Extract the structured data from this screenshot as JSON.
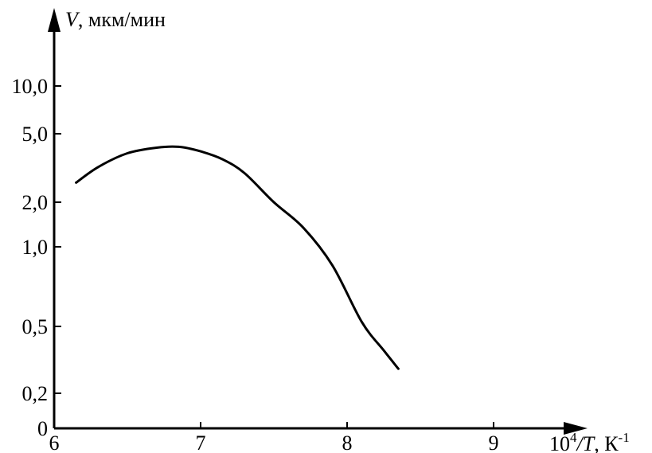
{
  "chart_data": {
    "type": "line",
    "title": "",
    "ylabel": {
      "symbol": "V",
      "unit": ", мкм/мин"
    },
    "xlabel": {
      "prefix": "10",
      "sup": "4",
      "symbol": "/T",
      "unit": ", К",
      "unit_sup": "-1"
    },
    "x_ticks": [
      "6",
      "7",
      "8",
      "9"
    ],
    "x_tick_values": [
      6,
      7,
      8,
      9
    ],
    "y_ticks": [
      "0",
      "0,2",
      "0,5",
      "1,0",
      "2,0",
      "5,0",
      "10,0"
    ],
    "y_tick_values": [
      0,
      0.2,
      0.5,
      1.0,
      2.0,
      5.0,
      10.0
    ],
    "y_scale": "log (labeled positions)",
    "xlim": [
      6,
      9.5
    ],
    "grid": false,
    "series": [
      {
        "x": [
          6.15,
          6.3,
          6.5,
          6.7,
          6.85,
          7.0,
          7.15,
          7.3,
          7.5,
          7.7,
          7.9,
          8.1,
          8.25,
          8.35
        ],
        "y": [
          2.6,
          3.2,
          3.85,
          4.15,
          4.2,
          3.95,
          3.55,
          2.95,
          2.0,
          1.35,
          0.85,
          0.52,
          0.36,
          0.28
        ]
      }
    ]
  }
}
